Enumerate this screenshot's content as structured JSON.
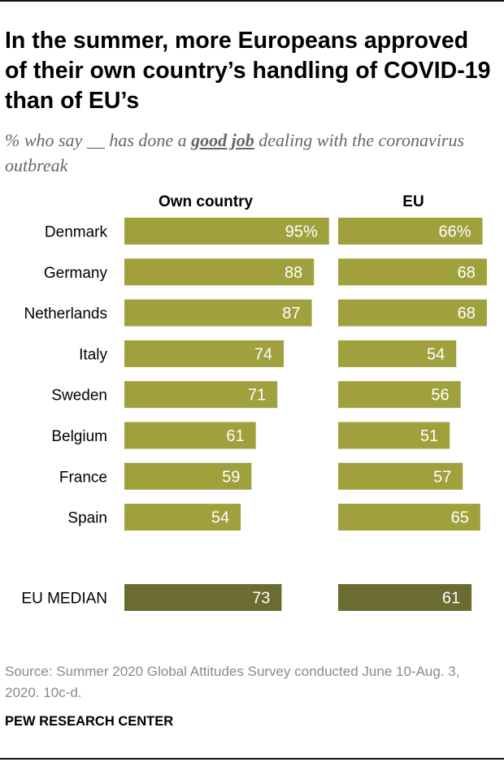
{
  "title": "In the summer, more Europeans approved of their own country’s handling of COVID-19 than of EU’s",
  "subtitle": {
    "before": "% who say __ has done a ",
    "emphasis": "good job",
    "after": " dealing with the coronavirus outbreak"
  },
  "colors": {
    "bar": "#a0a13d",
    "median_bar": "#6b6c31",
    "bar_label": "#ffffff"
  },
  "chart_data": {
    "type": "bar",
    "orientation": "horizontal",
    "categories": [
      "Denmark",
      "Germany",
      "Netherlands",
      "Italy",
      "Sweden",
      "Belgium",
      "France",
      "Spain"
    ],
    "series": [
      {
        "name": "Own country",
        "values": [
          95,
          88,
          87,
          74,
          71,
          61,
          59,
          54
        ],
        "labels": [
          "95%",
          "88",
          "87",
          "74",
          "71",
          "61",
          "59",
          "54"
        ]
      },
      {
        "name": "EU",
        "values": [
          66,
          68,
          68,
          54,
          56,
          51,
          57,
          65
        ],
        "labels": [
          "66%",
          "68",
          "68",
          "54",
          "56",
          "51",
          "57",
          "65"
        ]
      }
    ],
    "median": {
      "label": "EU MEDIAN",
      "values": [
        73,
        61
      ],
      "labels": [
        "73",
        "61"
      ]
    },
    "xlim": [
      0,
      100
    ]
  },
  "source": "Source: Summer 2020 Global Attitudes Survey conducted June 10-Aug. 3, 2020. 10c-d.",
  "brand": "PEW RESEARCH CENTER"
}
